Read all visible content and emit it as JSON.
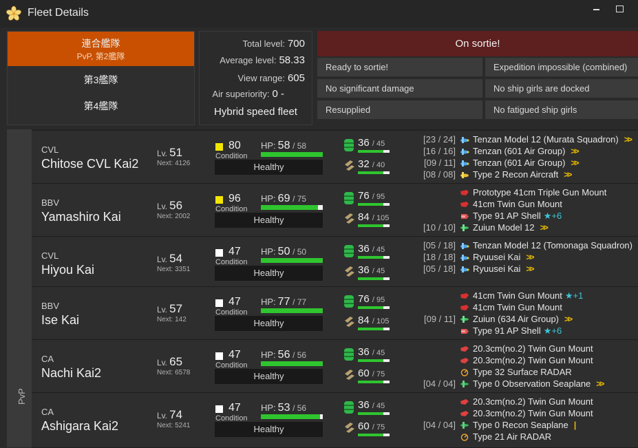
{
  "window": {
    "title": "Fleet Details"
  },
  "fleets": [
    {
      "label": "連合艦隊",
      "sub": "PvP, 第2艦隊"
    },
    {
      "label": "第3艦隊"
    },
    {
      "label": "第4艦隊"
    }
  ],
  "stats": {
    "total_level_label": "Total level:",
    "total_level": "700",
    "avg_level_label": "Average level:",
    "avg_level": "58.33",
    "view_range_label": "View range:",
    "view_range": "605",
    "air_sup_label": "Air superiority:",
    "air_sup": "0 -",
    "speed": "Hybrid speed fleet"
  },
  "status": {
    "main": "On sortie!",
    "items": [
      "Ready to sortie!",
      "Expedition impossible (combined)",
      "No significant damage",
      "No ship girls are docked",
      "Resupplied",
      "No fatigued ship girls"
    ]
  },
  "side_label": "PvP",
  "labels": {
    "lv": "Lv.",
    "next": "Next:",
    "condition": "Condition",
    "hp": "HP:"
  },
  "colors": {
    "accent": "#c85000",
    "sortie": "#5e1f1f",
    "bar": "#2fc52f",
    "cond_yellow": "#f2e600",
    "cond_white": "#ffffff"
  },
  "ships": [
    {
      "type": "CVL",
      "name": "Chitose CVL Kai2",
      "level": "51",
      "next": "4126",
      "cond": "80",
      "cond_color": "yellow",
      "hp_cur": "58",
      "hp_max": "/ 58",
      "hp_frac": 1.0,
      "health": "Healthy",
      "fuel": "36",
      "fuel_max": "/ 45",
      "fuel_frac": 0.8,
      "ammo": "32",
      "ammo_max": "/ 40",
      "ammo_frac": 0.8,
      "equipment": [
        {
          "slot": "[23 / 24]",
          "icon": "torpedo-bomber-icon",
          "name": "Tenzan Model 12 (Murata Squadron)",
          "prof": ">>"
        },
        {
          "slot": "[16 / 16]",
          "icon": "torpedo-bomber-icon",
          "name": "Tenzan (601 Air Group)",
          "prof": ">>"
        },
        {
          "slot": "[09 / 11]",
          "icon": "torpedo-bomber-icon",
          "name": "Tenzan (601 Air Group)",
          "prof": ">>"
        },
        {
          "slot": "[08 / 08]",
          "icon": "recon-aircraft-icon",
          "name": "Type 2 Recon Aircraft",
          "prof": ">>"
        }
      ]
    },
    {
      "type": "BBV",
      "name": "Yamashiro Kai",
      "level": "56",
      "next": "2002",
      "cond": "96",
      "cond_color": "yellow",
      "hp_cur": "69",
      "hp_max": "/ 75",
      "hp_frac": 0.92,
      "health": "Healthy",
      "fuel": "76",
      "fuel_max": "/ 95",
      "fuel_frac": 0.8,
      "ammo": "84",
      "ammo_max": "/ 105",
      "ammo_frac": 0.8,
      "equipment": [
        {
          "slot": "",
          "icon": "main-gun-icon",
          "name": "Prototype 41cm Triple Gun Mount"
        },
        {
          "slot": "",
          "icon": "main-gun-icon",
          "name": "41cm Twin Gun Mount"
        },
        {
          "slot": "",
          "icon": "ap-shell-icon",
          "name": "Type 91 AP Shell",
          "star": "★+6"
        },
        {
          "slot": "[10 / 10]",
          "icon": "seaplane-bomber-icon",
          "name": "Zuiun Model 12",
          "prof": ">>"
        }
      ]
    },
    {
      "type": "CVL",
      "name": "Hiyou Kai",
      "level": "54",
      "next": "3351",
      "cond": "47",
      "cond_color": "white",
      "hp_cur": "50",
      "hp_max": "/ 50",
      "hp_frac": 1.0,
      "health": "Healthy",
      "fuel": "36",
      "fuel_max": "/ 45",
      "fuel_frac": 0.8,
      "ammo": "36",
      "ammo_max": "/ 45",
      "ammo_frac": 0.8,
      "equipment": [
        {
          "slot": "[05 / 18]",
          "icon": "torpedo-bomber-icon",
          "name": "Tenzan Model 12 (Tomonaga Squadron)"
        },
        {
          "slot": "[18 / 18]",
          "icon": "torpedo-bomber-icon",
          "name": "Ryuusei Kai",
          "prof": ">>"
        },
        {
          "slot": "[05 / 18]",
          "icon": "torpedo-bomber-icon",
          "name": "Ryuusei Kai",
          "prof": ">>"
        }
      ]
    },
    {
      "type": "BBV",
      "name": "Ise Kai",
      "level": "57",
      "next": "142",
      "cond": "47",
      "cond_color": "white",
      "hp_cur": "77",
      "hp_max": "/ 77",
      "hp_frac": 1.0,
      "health": "Healthy",
      "fuel": "76",
      "fuel_max": "/ 95",
      "fuel_frac": 0.8,
      "ammo": "84",
      "ammo_max": "/ 105",
      "ammo_frac": 0.8,
      "equipment": [
        {
          "slot": "",
          "icon": "main-gun-icon",
          "name": "41cm Twin Gun Mount",
          "star": "★+1"
        },
        {
          "slot": "",
          "icon": "main-gun-icon",
          "name": "41cm Twin Gun Mount"
        },
        {
          "slot": "[09 / 11]",
          "icon": "seaplane-bomber-icon",
          "name": "Zuiun (634 Air Group)",
          "prof": ">>"
        },
        {
          "slot": "",
          "icon": "ap-shell-icon",
          "name": "Type 91 AP Shell",
          "star": "★+6"
        }
      ]
    },
    {
      "type": "CA",
      "name": "Nachi Kai2",
      "level": "65",
      "next": "6578",
      "cond": "47",
      "cond_color": "white",
      "hp_cur": "56",
      "hp_max": "/ 56",
      "hp_frac": 1.0,
      "health": "Healthy",
      "fuel": "36",
      "fuel_max": "/ 45",
      "fuel_frac": 0.8,
      "ammo": "60",
      "ammo_max": "/ 75",
      "ammo_frac": 0.8,
      "equipment": [
        {
          "slot": "",
          "icon": "medium-gun-icon",
          "name": "20.3cm(no.2) Twin Gun Mount"
        },
        {
          "slot": "",
          "icon": "medium-gun-icon",
          "name": "20.3cm(no.2) Twin Gun Mount"
        },
        {
          "slot": "",
          "icon": "radar-icon",
          "name": "Type 32 Surface RADAR"
        },
        {
          "slot": "[04 / 04]",
          "icon": "seaplane-icon",
          "name": "Type 0 Observation Seaplane",
          "prof": ">>"
        }
      ]
    },
    {
      "type": "CA",
      "name": "Ashigara Kai2",
      "level": "74",
      "next": "5241",
      "cond": "47",
      "cond_color": "white",
      "hp_cur": "53",
      "hp_max": "/ 56",
      "hp_frac": 0.95,
      "health": "Healthy",
      "fuel": "36",
      "fuel_max": "/ 45",
      "fuel_frac": 0.8,
      "ammo": "60",
      "ammo_max": "/ 75",
      "ammo_frac": 0.8,
      "equipment": [
        {
          "slot": "",
          "icon": "medium-gun-icon",
          "name": "20.3cm(no.2) Twin Gun Mount"
        },
        {
          "slot": "",
          "icon": "medium-gun-icon",
          "name": "20.3cm(no.2) Twin Gun Mount"
        },
        {
          "slot": "[04 / 04]",
          "icon": "seaplane-icon",
          "name": "Type 0 Recon Seaplane",
          "prof": "|"
        },
        {
          "slot": "",
          "icon": "radar-icon",
          "name": "Type 21 Air RADAR"
        }
      ]
    }
  ]
}
